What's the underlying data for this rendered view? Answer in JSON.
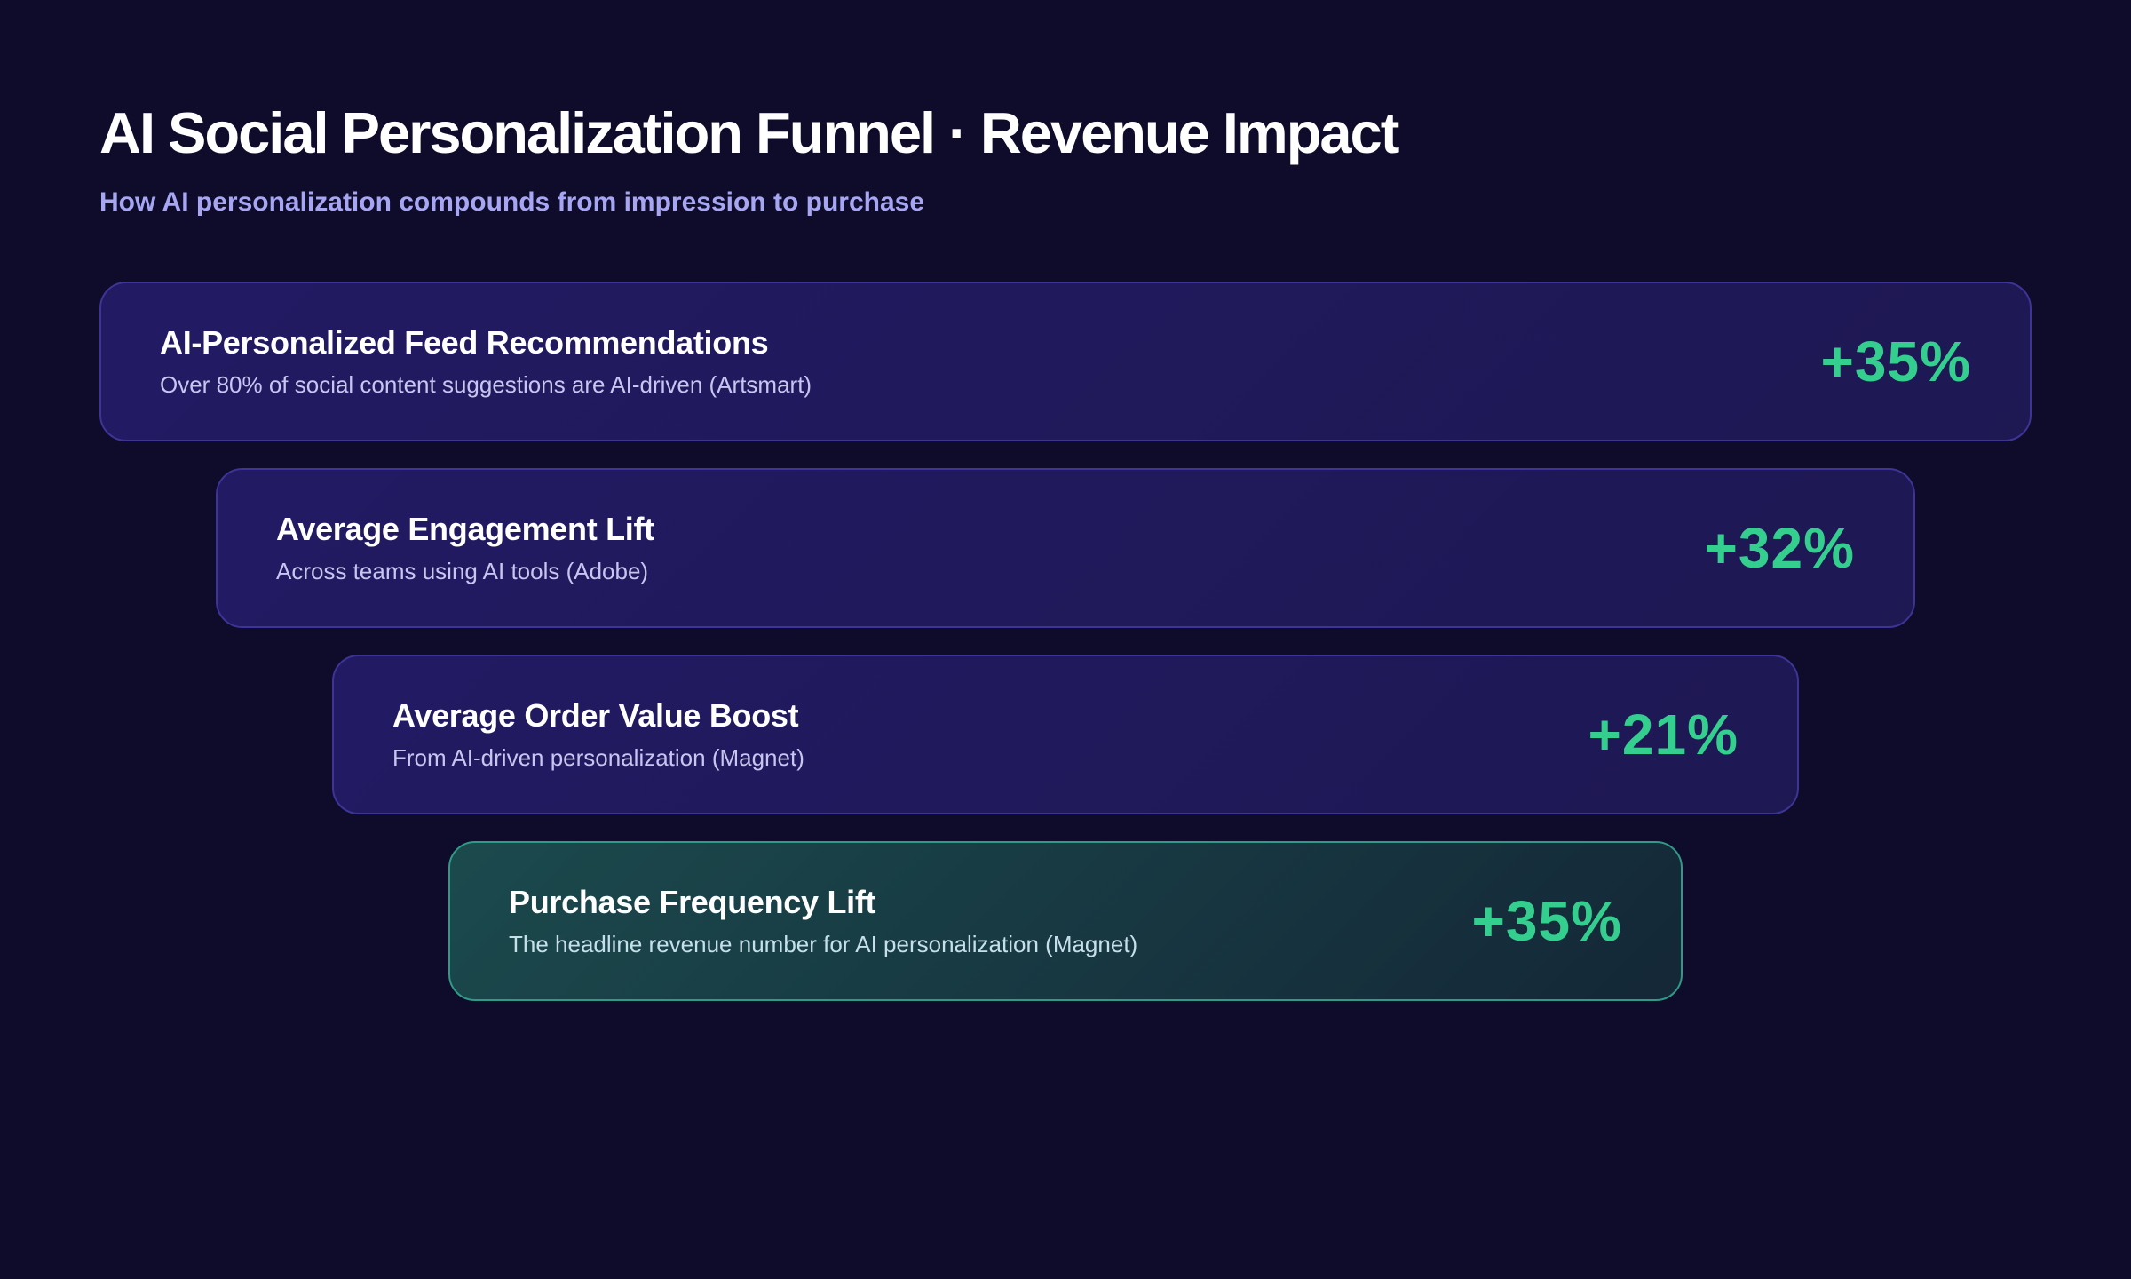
{
  "header": {
    "title": "AI Social Personalization Funnel · Revenue Impact",
    "subtitle": "How AI personalization compounds from impression to purchase"
  },
  "stages": [
    {
      "label": "AI-Personalized Feed Recommendations",
      "description": "Over 80% of social content suggestions are AI-driven (Artsmart)",
      "value": "+35%"
    },
    {
      "label": "Average Engagement Lift",
      "description": "Across teams using AI tools (Adobe)",
      "value": "+32%"
    },
    {
      "label": "Average Order Value Boost",
      "description": "From AI-driven personalization (Magnet)",
      "value": "+21%"
    },
    {
      "label": "Purchase Frequency Lift",
      "description": "The headline revenue number for AI personalization (Magnet)",
      "value": "+35%"
    }
  ],
  "colors": {
    "background": "#0e0b2b",
    "stage_fill": "#221a63",
    "stage_border": "#3d3496",
    "final_fill": "#1b4a4d",
    "final_border": "#2f9a85",
    "value_accent": "#34cf8f",
    "subtitle": "#a7a6f3"
  }
}
